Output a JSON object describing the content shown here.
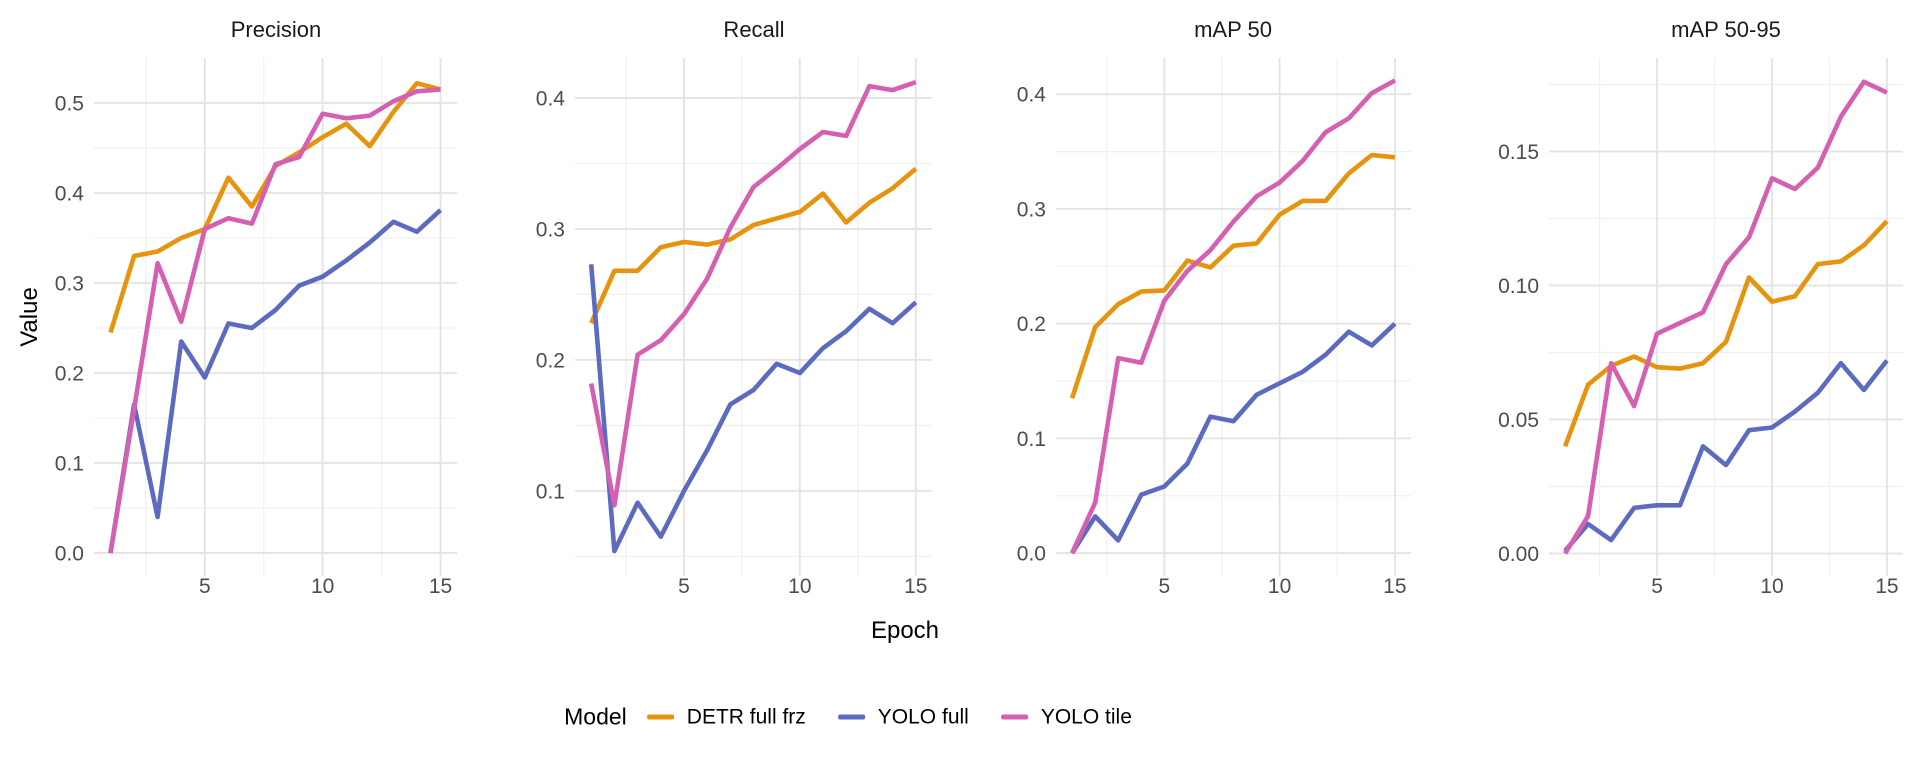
{
  "chart_data": {
    "type": "line",
    "xlabel": "Epoch",
    "ylabel": "Value",
    "legend_title": "Model",
    "legend_position": "bottom",
    "grid": true,
    "x": [
      1,
      2,
      3,
      4,
      5,
      6,
      7,
      8,
      9,
      10,
      11,
      12,
      13,
      14,
      15
    ],
    "xlim": [
      0.3,
      15.7
    ],
    "x_ticks": [
      5,
      10,
      15
    ],
    "x_minor": [
      2.5,
      7.5,
      12.5
    ],
    "series": [
      {
        "name": "DETR full frz",
        "color": "#E6940E"
      },
      {
        "name": "YOLO full",
        "color": "#5C6BBF"
      },
      {
        "name": "YOLO tile",
        "color": "#D55FB0"
      }
    ],
    "facets": [
      {
        "title": "Precision",
        "ylim": [
          -0.0256,
          0.55
        ],
        "y_ticks": [
          {
            "label": "0.0",
            "v": 0.0
          },
          {
            "label": "0.1",
            "v": 0.1
          },
          {
            "label": "0.2",
            "v": 0.2
          },
          {
            "label": "0.3",
            "v": 0.3
          },
          {
            "label": "0.4",
            "v": 0.4
          },
          {
            "label": "0.5",
            "v": 0.5
          }
        ],
        "y_minor": [
          0.05,
          0.15,
          0.25,
          0.35,
          0.45
        ],
        "values": [
          [
            0.245,
            0.33,
            0.335,
            0.35,
            0.36,
            0.417,
            0.385,
            0.43,
            0.445,
            0.462,
            0.477,
            0.452,
            0.49,
            0.522,
            0.515
          ],
          [
            0.0,
            0.165,
            0.04,
            0.235,
            0.195,
            0.255,
            0.25,
            0.27,
            0.297,
            0.307,
            0.325,
            0.345,
            0.368,
            0.357,
            0.381
          ],
          [
            0.0,
            0.16,
            0.322,
            0.257,
            0.36,
            0.372,
            0.366,
            0.432,
            0.44,
            0.488,
            0.483,
            0.486,
            0.502,
            0.513,
            0.515
          ]
        ]
      },
      {
        "title": "Recall",
        "ylim": [
          0.035,
          0.4305
        ],
        "y_ticks": [
          {
            "label": "0.1",
            "v": 0.1
          },
          {
            "label": "0.2",
            "v": 0.2
          },
          {
            "label": "0.3",
            "v": 0.3
          },
          {
            "label": "0.4",
            "v": 0.4
          }
        ],
        "y_minor": [
          0.05,
          0.15,
          0.25,
          0.35
        ],
        "values": [
          [
            0.228,
            0.268,
            0.268,
            0.286,
            0.29,
            0.288,
            0.292,
            0.303,
            0.308,
            0.313,
            0.327,
            0.305,
            0.32,
            0.331,
            0.346
          ],
          [
            0.273,
            0.054,
            0.091,
            0.065,
            0.1,
            0.131,
            0.166,
            0.177,
            0.197,
            0.19,
            0.209,
            0.222,
            0.239,
            0.228,
            0.244
          ],
          [
            0.182,
            0.089,
            0.204,
            0.215,
            0.235,
            0.262,
            0.301,
            0.332,
            0.346,
            0.361,
            0.374,
            0.371,
            0.409,
            0.406,
            0.412
          ]
        ]
      },
      {
        "title": "mAP 50",
        "ylim": [
          -0.02,
          0.4316
        ],
        "y_ticks": [
          {
            "label": "0.0",
            "v": 0.0
          },
          {
            "label": "0.1",
            "v": 0.1
          },
          {
            "label": "0.2",
            "v": 0.2
          },
          {
            "label": "0.3",
            "v": 0.3
          },
          {
            "label": "0.4",
            "v": 0.4
          }
        ],
        "y_minor": [
          0.05,
          0.15,
          0.25,
          0.35
        ],
        "values": [
          [
            0.135,
            0.197,
            0.217,
            0.228,
            0.229,
            0.255,
            0.249,
            0.268,
            0.27,
            0.295,
            0.307,
            0.307,
            0.331,
            0.347,
            0.345
          ],
          [
            0.0,
            0.032,
            0.011,
            0.051,
            0.058,
            0.078,
            0.119,
            0.115,
            0.138,
            0.148,
            0.158,
            0.173,
            0.193,
            0.181,
            0.2
          ],
          [
            0.0,
            0.044,
            0.17,
            0.166,
            0.22,
            0.246,
            0.264,
            0.289,
            0.311,
            0.323,
            0.342,
            0.367,
            0.379,
            0.401,
            0.412
          ]
        ]
      },
      {
        "title": "mAP 50-95",
        "ylim": [
          -0.0084,
          0.1849
        ],
        "y_ticks": [
          {
            "label": "0.00",
            "v": 0.0
          },
          {
            "label": "0.05",
            "v": 0.05
          },
          {
            "label": "0.10",
            "v": 0.1
          },
          {
            "label": "0.15",
            "v": 0.15
          }
        ],
        "y_minor": [
          0.025,
          0.075,
          0.125,
          0.175
        ],
        "values": [
          [
            0.04,
            0.063,
            0.07,
            0.0735,
            0.0695,
            0.069,
            0.071,
            0.079,
            0.103,
            0.094,
            0.096,
            0.108,
            0.109,
            0.115,
            0.124
          ],
          [
            0.001,
            0.011,
            0.005,
            0.017,
            0.018,
            0.018,
            0.04,
            0.033,
            0.046,
            0.047,
            0.053,
            0.06,
            0.071,
            0.061,
            0.072
          ],
          [
            0.0,
            0.014,
            0.071,
            0.055,
            0.082,
            0.086,
            0.09,
            0.108,
            0.118,
            0.14,
            0.136,
            0.144,
            0.163,
            0.176,
            0.172
          ]
        ]
      }
    ],
    "style": {
      "grid_major_color": "#e3e3e3",
      "grid_minor_color": "#f0f0f0",
      "tick_label_color": "#4d4d4d",
      "background": "#ffffff"
    }
  }
}
